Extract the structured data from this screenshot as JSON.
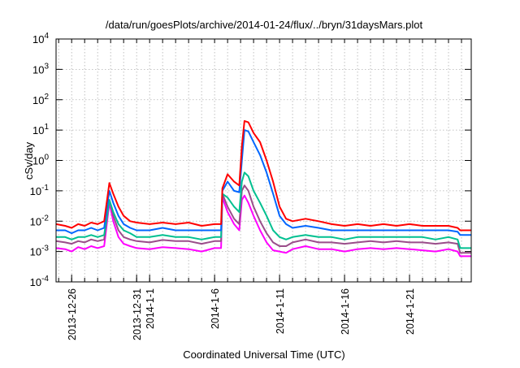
{
  "chart_data": {
    "type": "line",
    "title": "/data/run/goesPlots/archive/2014-01-24/flux/../bryn/31daysMars.plot",
    "xlabel": "Coordinated Universal Time (UTC)",
    "ylabel": "cSv/day",
    "yscale": "log",
    "ylim": [
      0.0001,
      10000
    ],
    "y_ticks": [
      {
        "base": "10",
        "exp": "4",
        "value": 10000
      },
      {
        "base": "10",
        "exp": "3",
        "value": 1000
      },
      {
        "base": "10",
        "exp": "2",
        "value": 100
      },
      {
        "base": "10",
        "exp": "1",
        "value": 10
      },
      {
        "base": "10",
        "exp": "0",
        "value": 1
      },
      {
        "base": "10",
        "exp": "-1",
        "value": 0.1
      },
      {
        "base": "10",
        "exp": "-2",
        "value": 0.01
      },
      {
        "base": "10",
        "exp": "-3",
        "value": 0.001
      },
      {
        "base": "10",
        "exp": "-4",
        "value": 0.0001
      }
    ],
    "x_units": "days since 2013-12-26",
    "xlim": [
      -1.2,
      30.75
    ],
    "x_ticks": [
      {
        "label": "2013-12-26",
        "day": 0
      },
      {
        "label": "2013-12-31",
        "day": 5
      },
      {
        "label": "2014-1-1",
        "day": 6
      },
      {
        "label": "2014-1-6",
        "day": 11
      },
      {
        "label": "2014-1-11",
        "day": 16
      },
      {
        "label": "2014-1-16",
        "day": 21
      },
      {
        "label": "2014-1-21",
        "day": 26
      }
    ],
    "grid": true,
    "x": [
      -1.2,
      -0.5,
      0,
      0.5,
      1,
      1.5,
      2,
      2.5,
      2.9,
      3.2,
      3.6,
      4,
      4.5,
      5,
      6,
      7,
      8,
      9,
      10,
      11,
      11.5,
      11.6,
      12,
      12.5,
      12.9,
      13.1,
      13.3,
      13.6,
      14,
      14.5,
      15,
      15.5,
      16,
      16.5,
      17,
      18,
      19,
      20,
      21,
      22,
      23,
      24,
      25,
      26,
      27,
      28,
      29,
      29.7,
      29.9,
      30.75
    ],
    "series": [
      {
        "name": "magenta",
        "color": "#ff00ff",
        "values": [
          0.0013,
          0.0012,
          0.001,
          0.0014,
          0.0012,
          0.0015,
          0.0013,
          0.0015,
          0.04,
          0.01,
          0.003,
          0.0018,
          0.0015,
          0.0013,
          0.0012,
          0.0014,
          0.0013,
          0.0012,
          0.001,
          0.0013,
          0.0013,
          0.06,
          0.02,
          0.008,
          0.005,
          0.05,
          0.07,
          0.04,
          0.015,
          0.005,
          0.002,
          0.0011,
          0.001,
          0.0009,
          0.0012,
          0.0015,
          0.0012,
          0.0012,
          0.001,
          0.0012,
          0.0013,
          0.0012,
          0.0013,
          0.0012,
          0.0011,
          0.001,
          0.0012,
          0.001,
          0.0007,
          0.0007
        ]
      },
      {
        "name": "purple",
        "color": "#9a4d8a",
        "values": [
          0.0022,
          0.002,
          0.0018,
          0.0022,
          0.002,
          0.0025,
          0.0022,
          0.0025,
          0.05,
          0.015,
          0.005,
          0.003,
          0.0025,
          0.0022,
          0.002,
          0.0024,
          0.0022,
          0.0022,
          0.0018,
          0.0022,
          0.0022,
          0.08,
          0.03,
          0.012,
          0.008,
          0.1,
          0.15,
          0.1,
          0.03,
          0.01,
          0.004,
          0.002,
          0.0015,
          0.0015,
          0.002,
          0.0025,
          0.002,
          0.002,
          0.0018,
          0.002,
          0.0022,
          0.002,
          0.0022,
          0.002,
          0.002,
          0.0018,
          0.002,
          0.0018,
          0.0009,
          0.0009
        ]
      },
      {
        "name": "teal",
        "color": "#00c090",
        "values": [
          0.003,
          0.003,
          0.0025,
          0.003,
          0.003,
          0.0035,
          0.003,
          0.0035,
          0.05,
          0.02,
          0.008,
          0.005,
          0.004,
          0.003,
          0.003,
          0.0035,
          0.003,
          0.003,
          0.0025,
          0.003,
          0.003,
          0.08,
          0.06,
          0.03,
          0.02,
          0.2,
          0.4,
          0.3,
          0.1,
          0.04,
          0.015,
          0.005,
          0.003,
          0.0025,
          0.003,
          0.0035,
          0.003,
          0.003,
          0.0025,
          0.003,
          0.003,
          0.003,
          0.003,
          0.003,
          0.003,
          0.0025,
          0.003,
          0.0025,
          0.0013,
          0.0013
        ]
      },
      {
        "name": "blue",
        "color": "#0066ff",
        "values": [
          0.005,
          0.005,
          0.004,
          0.005,
          0.005,
          0.006,
          0.005,
          0.006,
          0.1,
          0.04,
          0.015,
          0.008,
          0.006,
          0.005,
          0.005,
          0.006,
          0.005,
          0.005,
          0.005,
          0.005,
          0.005,
          0.1,
          0.2,
          0.1,
          0.09,
          1,
          10,
          9,
          4,
          1.5,
          0.4,
          0.08,
          0.015,
          0.008,
          0.006,
          0.007,
          0.006,
          0.005,
          0.005,
          0.005,
          0.005,
          0.005,
          0.005,
          0.005,
          0.005,
          0.005,
          0.005,
          0.0045,
          0.0035,
          0.0035
        ]
      },
      {
        "name": "red",
        "color": "#ff0000",
        "values": [
          0.008,
          0.007,
          0.006,
          0.008,
          0.007,
          0.009,
          0.008,
          0.01,
          0.18,
          0.08,
          0.03,
          0.015,
          0.01,
          0.009,
          0.008,
          0.009,
          0.008,
          0.009,
          0.007,
          0.008,
          0.008,
          0.12,
          0.35,
          0.2,
          0.15,
          3,
          20,
          18,
          8,
          4,
          1,
          0.2,
          0.03,
          0.012,
          0.01,
          0.012,
          0.01,
          0.008,
          0.007,
          0.008,
          0.007,
          0.008,
          0.007,
          0.008,
          0.007,
          0.007,
          0.007,
          0.006,
          0.005,
          0.005
        ]
      }
    ]
  }
}
